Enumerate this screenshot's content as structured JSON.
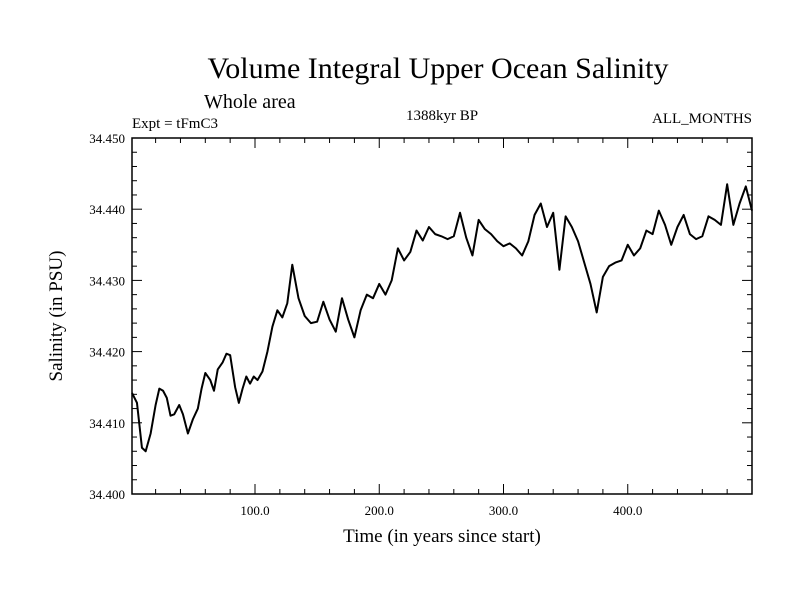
{
  "chart_data": {
    "type": "line",
    "title": "Volume Integral Upper Ocean Salinity",
    "subtitle": "Whole area",
    "experiment_label": "Expt = tFmC3",
    "period_label": "1388kyr BP",
    "months_label": "ALL_MONTHS",
    "xlabel": "Time (in years since start)",
    "ylabel": "Salinity (in PSU)",
    "xlim": [
      1,
      500
    ],
    "ylim": [
      34.4,
      34.45
    ],
    "x_ticks": [
      100,
      200,
      300,
      400
    ],
    "x_tick_labels": [
      "100.0",
      "200.0",
      "300.0",
      "400.0"
    ],
    "y_ticks": [
      34.4,
      34.41,
      34.42,
      34.43,
      34.44,
      34.45
    ],
    "y_tick_labels": [
      "34.400",
      "34.410",
      "34.420",
      "34.430",
      "34.440",
      "34.450"
    ],
    "series": [
      {
        "name": "Salinity",
        "color": "#000000",
        "x": [
          1,
          5,
          9,
          12,
          16,
          20,
          23,
          26,
          29,
          32,
          35,
          39,
          42,
          46,
          50,
          54,
          57,
          60,
          64,
          67,
          70,
          74,
          77,
          80,
          84,
          87,
          90,
          93,
          96,
          99,
          102,
          106,
          110,
          114,
          118,
          122,
          126,
          130,
          135,
          140,
          145,
          150,
          155,
          160,
          165,
          170,
          175,
          180,
          185,
          190,
          195,
          200,
          205,
          210,
          215,
          220,
          225,
          230,
          235,
          240,
          245,
          250,
          255,
          260,
          265,
          270,
          275,
          280,
          285,
          290,
          295,
          300,
          305,
          310,
          315,
          320,
          325,
          330,
          335,
          340,
          345,
          350,
          355,
          360,
          365,
          370,
          375,
          380,
          385,
          390,
          395,
          400,
          405,
          410,
          415,
          420,
          425,
          430,
          435,
          440,
          445,
          450,
          455,
          460,
          465,
          470,
          475,
          480,
          485,
          490,
          495,
          500
        ],
        "values": [
          34.4142,
          34.4128,
          34.4065,
          34.406,
          34.4085,
          34.4125,
          34.4148,
          34.4145,
          34.4135,
          34.411,
          34.4112,
          34.4125,
          34.4112,
          34.4085,
          34.4105,
          34.412,
          34.4148,
          34.417,
          34.416,
          34.4145,
          34.4175,
          34.4185,
          34.4197,
          34.4195,
          34.415,
          34.4128,
          34.4148,
          34.4165,
          34.4155,
          34.4165,
          34.416,
          34.4172,
          34.42,
          34.4235,
          34.4258,
          34.4248,
          34.4268,
          34.4322,
          34.4275,
          34.425,
          34.424,
          34.4242,
          34.427,
          34.4245,
          34.4228,
          34.4275,
          34.4245,
          34.422,
          34.4258,
          34.428,
          34.4275,
          34.4295,
          34.428,
          34.43,
          34.4345,
          34.4328,
          34.434,
          34.437,
          34.4356,
          34.4375,
          34.4365,
          34.4362,
          34.4358,
          34.4362,
          34.4395,
          34.436,
          34.4335,
          34.4385,
          34.4372,
          34.4365,
          34.4355,
          34.4348,
          34.4352,
          34.4345,
          34.4335,
          34.4355,
          34.4392,
          34.4408,
          34.4375,
          34.4395,
          34.4315,
          34.439,
          34.4375,
          34.4355,
          34.4325,
          34.4295,
          34.4255,
          34.4305,
          34.432,
          34.4325,
          34.4328,
          34.435,
          34.4335,
          34.4345,
          34.437,
          34.4365,
          34.4398,
          34.4378,
          34.435,
          34.4375,
          34.4392,
          34.4365,
          34.4358,
          34.4362,
          34.439,
          34.4385,
          34.4378,
          34.4435,
          34.4378,
          34.4408,
          34.4432,
          34.4398
        ]
      }
    ]
  }
}
